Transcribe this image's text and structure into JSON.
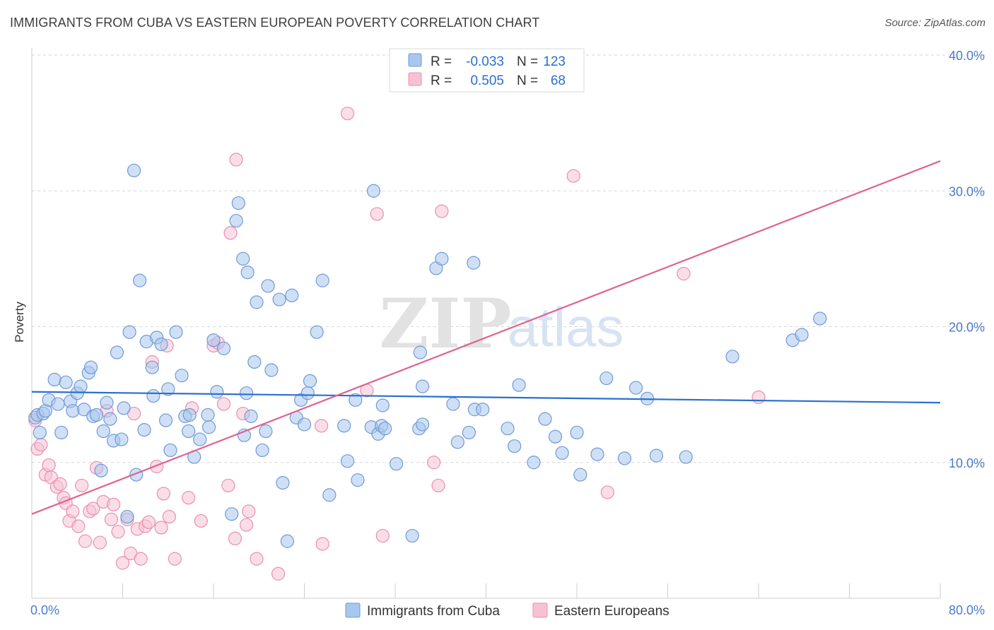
{
  "title": "IMMIGRANTS FROM CUBA VS EASTERN EUROPEAN POVERTY CORRELATION CHART",
  "source": "Source: ZipAtlas.com",
  "watermark": {
    "zip": "ZIP",
    "atlas": "atlas"
  },
  "colors": {
    "blue_fill": "#a8c7ee",
    "blue_stroke": "#6f9ad6",
    "blue_line": "#2a6fcf",
    "pink_fill": "#f6c2d3",
    "pink_stroke": "#ea8fb0",
    "pink_line": "#e0628f",
    "tick_text": "#4a7cc9",
    "grid": "#d6d6d6"
  },
  "legend": {
    "rows": [
      {
        "r_label": "R =",
        "r_value": "-0.033",
        "n_label": "N =",
        "n_value": "123",
        "color": "blue"
      },
      {
        "r_label": "R =",
        "r_value": "0.505",
        "n_label": "N =",
        "n_value": "68",
        "color": "pink"
      }
    ]
  },
  "chart_data": {
    "type": "scatter",
    "title": "IMMIGRANTS FROM CUBA VS EASTERN EUROPEAN POVERTY CORRELATION CHART",
    "xlabel": "",
    "ylabel": "Poverty",
    "xlim": [
      0,
      80
    ],
    "ylim": [
      0,
      40
    ],
    "x_tick_labels": [
      "0.0%",
      "80.0%"
    ],
    "y_ticks": [
      10,
      20,
      30,
      40
    ],
    "y_tick_labels": [
      "10.0%",
      "20.0%",
      "30.0%",
      "40.0%"
    ],
    "grid": true,
    "legend_position": "top-center",
    "series": [
      {
        "name": "Immigrants from Cuba",
        "color": "blue",
        "trend": {
          "x": [
            0,
            80
          ],
          "y": [
            15.2,
            14.4
          ]
        },
        "points": [
          [
            0.3,
            13.3
          ],
          [
            0.5,
            13.5
          ],
          [
            0.7,
            12.2
          ],
          [
            1.0,
            13.6
          ],
          [
            1.2,
            13.8
          ],
          [
            1.5,
            14.6
          ],
          [
            2.0,
            16.1
          ],
          [
            2.3,
            14.3
          ],
          [
            2.6,
            12.2
          ],
          [
            3.0,
            15.9
          ],
          [
            3.4,
            14.5
          ],
          [
            3.6,
            13.8
          ],
          [
            4.0,
            15.1
          ],
          [
            4.3,
            15.6
          ],
          [
            4.6,
            13.9
          ],
          [
            5.0,
            16.6
          ],
          [
            5.2,
            17.0
          ],
          [
            5.4,
            13.4
          ],
          [
            5.7,
            13.5
          ],
          [
            6.1,
            9.4
          ],
          [
            6.3,
            12.3
          ],
          [
            6.6,
            14.4
          ],
          [
            6.9,
            13.2
          ],
          [
            7.2,
            11.6
          ],
          [
            7.5,
            18.1
          ],
          [
            7.9,
            11.7
          ],
          [
            8.1,
            14.0
          ],
          [
            8.4,
            6.0
          ],
          [
            8.6,
            19.6
          ],
          [
            9.0,
            31.5
          ],
          [
            9.2,
            9.1
          ],
          [
            9.5,
            23.4
          ],
          [
            9.9,
            12.4
          ],
          [
            10.1,
            18.9
          ],
          [
            10.6,
            17.0
          ],
          [
            10.7,
            14.9
          ],
          [
            11.0,
            19.2
          ],
          [
            11.4,
            18.7
          ],
          [
            11.8,
            13.1
          ],
          [
            12.0,
            15.4
          ],
          [
            12.2,
            10.9
          ],
          [
            12.7,
            19.6
          ],
          [
            13.2,
            16.4
          ],
          [
            13.5,
            13.4
          ],
          [
            13.8,
            12.3
          ],
          [
            13.9,
            13.5
          ],
          [
            14.3,
            10.4
          ],
          [
            14.8,
            11.7
          ],
          [
            15.5,
            13.5
          ],
          [
            15.6,
            12.6
          ],
          [
            16.0,
            19.0
          ],
          [
            16.3,
            15.2
          ],
          [
            16.9,
            18.4
          ],
          [
            17.6,
            6.2
          ],
          [
            18.0,
            27.8
          ],
          [
            18.2,
            29.1
          ],
          [
            18.6,
            25.0
          ],
          [
            18.7,
            12.0
          ],
          [
            18.9,
            15.1
          ],
          [
            19.0,
            24.0
          ],
          [
            19.3,
            13.4
          ],
          [
            19.6,
            17.4
          ],
          [
            19.8,
            21.8
          ],
          [
            20.3,
            10.9
          ],
          [
            20.6,
            12.3
          ],
          [
            20.8,
            23.0
          ],
          [
            21.1,
            16.8
          ],
          [
            21.8,
            22.0
          ],
          [
            22.1,
            8.5
          ],
          [
            22.5,
            4.2
          ],
          [
            22.9,
            22.3
          ],
          [
            23.3,
            13.3
          ],
          [
            23.7,
            14.6
          ],
          [
            24.0,
            12.8
          ],
          [
            24.3,
            15.1
          ],
          [
            24.5,
            16.0
          ],
          [
            25.1,
            19.6
          ],
          [
            25.6,
            23.4
          ],
          [
            26.2,
            7.6
          ],
          [
            27.5,
            12.7
          ],
          [
            27.8,
            10.1
          ],
          [
            28.7,
            8.7
          ],
          [
            28.5,
            14.6
          ],
          [
            29.9,
            12.6
          ],
          [
            30.1,
            30.0
          ],
          [
            30.5,
            12.1
          ],
          [
            30.8,
            12.7
          ],
          [
            30.9,
            14.2
          ],
          [
            31.1,
            12.5
          ],
          [
            32.1,
            9.9
          ],
          [
            33.5,
            4.6
          ],
          [
            34.2,
            18.1
          ],
          [
            34.4,
            15.6
          ],
          [
            34.1,
            12.5
          ],
          [
            34.4,
            12.8
          ],
          [
            35.6,
            24.3
          ],
          [
            36.1,
            25.0
          ],
          [
            37.1,
            14.3
          ],
          [
            37.5,
            11.5
          ],
          [
            38.5,
            12.2
          ],
          [
            38.9,
            24.7
          ],
          [
            39.0,
            13.9
          ],
          [
            39.7,
            13.9
          ],
          [
            41.9,
            12.5
          ],
          [
            42.5,
            11.2
          ],
          [
            42.9,
            15.7
          ],
          [
            44.2,
            10.0
          ],
          [
            45.2,
            13.2
          ],
          [
            46.1,
            11.9
          ],
          [
            46.7,
            10.7
          ],
          [
            48.0,
            12.2
          ],
          [
            48.3,
            9.1
          ],
          [
            49.8,
            10.6
          ],
          [
            50.6,
            16.2
          ],
          [
            52.2,
            10.3
          ],
          [
            53.2,
            15.5
          ],
          [
            54.2,
            14.7
          ],
          [
            55.0,
            10.5
          ],
          [
            57.6,
            10.4
          ],
          [
            61.7,
            17.8
          ],
          [
            67.0,
            19.0
          ],
          [
            67.8,
            19.4
          ],
          [
            69.4,
            20.6
          ]
        ]
      },
      {
        "name": "Eastern Europeans",
        "color": "pink",
        "trend": {
          "x": [
            0,
            80
          ],
          "y": [
            6.2,
            32.2
          ]
        },
        "points": [
          [
            0.3,
            13.1
          ],
          [
            0.5,
            11.0
          ],
          [
            0.8,
            11.3
          ],
          [
            1.2,
            9.1
          ],
          [
            1.5,
            9.8
          ],
          [
            1.7,
            8.9
          ],
          [
            2.2,
            8.2
          ],
          [
            2.5,
            8.4
          ],
          [
            2.8,
            7.4
          ],
          [
            3.0,
            7.0
          ],
          [
            3.3,
            5.7
          ],
          [
            3.6,
            6.4
          ],
          [
            4.1,
            5.3
          ],
          [
            4.4,
            8.3
          ],
          [
            4.7,
            4.2
          ],
          [
            5.1,
            6.4
          ],
          [
            5.4,
            6.6
          ],
          [
            5.7,
            9.6
          ],
          [
            6.0,
            4.1
          ],
          [
            6.3,
            7.1
          ],
          [
            6.6,
            13.8
          ],
          [
            7.0,
            5.8
          ],
          [
            7.2,
            6.9
          ],
          [
            7.6,
            4.9
          ],
          [
            8.0,
            2.6
          ],
          [
            8.4,
            5.8
          ],
          [
            8.7,
            3.3
          ],
          [
            9.0,
            13.6
          ],
          [
            9.3,
            5.1
          ],
          [
            9.6,
            2.9
          ],
          [
            10.0,
            5.3
          ],
          [
            10.3,
            5.6
          ],
          [
            10.6,
            17.4
          ],
          [
            11.0,
            9.7
          ],
          [
            11.4,
            5.2
          ],
          [
            11.9,
            18.6
          ],
          [
            11.6,
            7.7
          ],
          [
            12.1,
            6.0
          ],
          [
            12.6,
            2.9
          ],
          [
            13.8,
            7.4
          ],
          [
            14.1,
            14.0
          ],
          [
            14.9,
            5.7
          ],
          [
            16.0,
            18.6
          ],
          [
            16.4,
            18.8
          ],
          [
            16.9,
            14.3
          ],
          [
            17.3,
            8.3
          ],
          [
            17.5,
            26.9
          ],
          [
            17.9,
            4.4
          ],
          [
            18.0,
            32.3
          ],
          [
            18.6,
            13.6
          ],
          [
            18.9,
            5.4
          ],
          [
            19.1,
            6.4
          ],
          [
            19.8,
            2.9
          ],
          [
            21.7,
            1.8
          ],
          [
            25.5,
            12.7
          ],
          [
            25.6,
            4.0
          ],
          [
            27.8,
            35.7
          ],
          [
            29.5,
            15.3
          ],
          [
            30.4,
            28.3
          ],
          [
            30.9,
            4.6
          ],
          [
            35.4,
            10.0
          ],
          [
            35.8,
            8.3
          ],
          [
            36.1,
            28.5
          ],
          [
            45.5,
            40.0
          ],
          [
            47.7,
            31.1
          ],
          [
            50.7,
            7.8
          ],
          [
            57.4,
            23.9
          ],
          [
            64.0,
            14.8
          ]
        ]
      }
    ]
  },
  "bottom_legend": [
    {
      "label": "Immigrants from Cuba",
      "color": "blue"
    },
    {
      "label": "Eastern Europeans",
      "color": "pink"
    }
  ]
}
